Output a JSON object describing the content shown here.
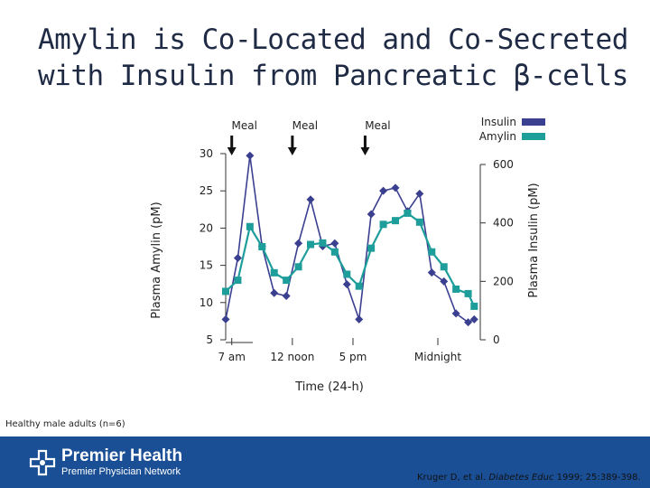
{
  "slide": {
    "title_line1": "Amylin is Co-Located and Co-Secreted",
    "title_line2": "with Insulin from Pancreatic β-cells",
    "note": "Healthy male adults (n=6)",
    "citation_authors": "Kruger D, et al.",
    "citation_journal": "Diabetes Educ",
    "citation_rest": "1999; 25:389-398.",
    "logo_main": "Premier Health",
    "logo_sub": "Premier Physician Network"
  },
  "colors": {
    "insulin": "#3b3f8f",
    "amylin": "#1e9e9b",
    "footer": "#1a4f96"
  },
  "chart_data": {
    "type": "line",
    "xlabel": "Time (24-h)",
    "ylabel_left": "Plasma Amylin (pM)",
    "ylabel_right": "Plasma Insulin (pM)",
    "ylim_left": [
      5,
      30
    ],
    "yticks_left": [
      5,
      10,
      15,
      20,
      25,
      30
    ],
    "ylim_right": [
      0,
      600
    ],
    "yticks_right": [
      0,
      200,
      400,
      600
    ],
    "xlim": [
      6.5,
      27.5
    ],
    "xticks": [
      {
        "x": 7,
        "label": "7 am"
      },
      {
        "x": 12,
        "label": "12 noon"
      },
      {
        "x": 17,
        "label": "5 pm"
      },
      {
        "x": 24,
        "label": "Midnight"
      }
    ],
    "meals": [
      {
        "x": 7,
        "label": "Meal"
      },
      {
        "x": 12,
        "label": "Meal"
      },
      {
        "x": 18,
        "label": "Meal"
      }
    ],
    "series": [
      {
        "name": "Insulin",
        "axis": "right",
        "marker": "diamond",
        "x": [
          6.5,
          7.5,
          8.5,
          9.5,
          10.5,
          11.5,
          12.5,
          13.5,
          14.5,
          15.5,
          16.5,
          17.5,
          18.5,
          19.5,
          20.5,
          21.5,
          22.5,
          23.5,
          24.5,
          25.5,
          26.5,
          27.0
        ],
        "y": [
          70,
          280,
          630,
          320,
          160,
          150,
          330,
          480,
          320,
          330,
          190,
          70,
          430,
          510,
          520,
          440,
          500,
          230,
          200,
          90,
          60,
          70
        ]
      },
      {
        "name": "Amylin",
        "axis": "left",
        "marker": "square",
        "x": [
          6.5,
          7.5,
          8.5,
          9.5,
          10.5,
          11.5,
          12.5,
          13.5,
          14.5,
          15.5,
          16.5,
          17.5,
          18.5,
          19.5,
          20.5,
          21.5,
          22.5,
          23.5,
          24.5,
          25.5,
          26.5,
          27.0
        ],
        "y": [
          11.5,
          13.0,
          20.2,
          17.5,
          14.0,
          13.0,
          14.8,
          17.8,
          18.0,
          16.8,
          13.8,
          12.2,
          17.3,
          20.5,
          21.0,
          22.0,
          20.8,
          16.8,
          14.8,
          11.8,
          11.2,
          9.5
        ]
      }
    ],
    "legend": {
      "placement": "top-right",
      "entries": [
        "Insulin",
        "Amylin"
      ]
    }
  }
}
